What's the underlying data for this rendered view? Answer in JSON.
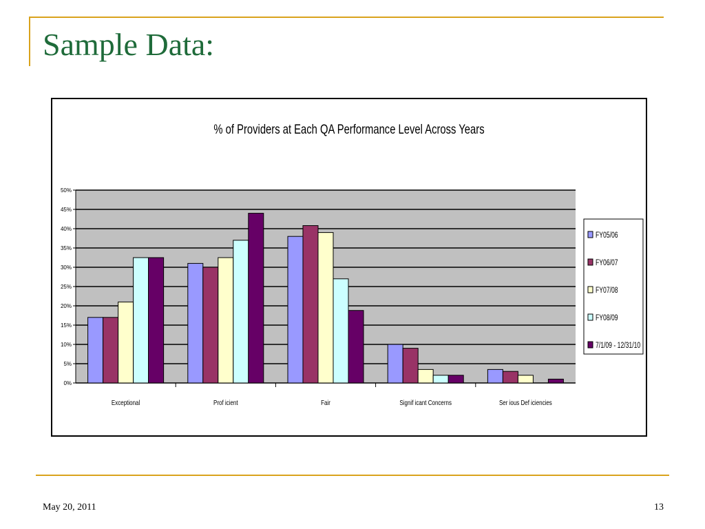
{
  "slide": {
    "title": "Sample Data:",
    "date": "May 20, 2011",
    "page_number": "13",
    "accent_color": "#d9a21b",
    "title_color": "#1f6b3a"
  },
  "chart_data": {
    "type": "bar",
    "title": "% of Providers at Each QA Performance Level Across Years",
    "xlabel": "",
    "ylabel": "",
    "ylim": [
      0,
      50
    ],
    "ytick_labels": [
      "0%",
      "5%",
      "10%",
      "15%",
      "20%",
      "25%",
      "30%",
      "35%",
      "40%",
      "45%",
      "50%"
    ],
    "grid": true,
    "legend_position": "right",
    "plot_background": "#c0c0c0",
    "categories": [
      "Exceptional",
      "Proficient",
      "Fair",
      "Significant Concerns",
      "Serious Deficiencies"
    ],
    "category_labels_display": [
      "Exceptional",
      "Prof icient",
      "Fair",
      "Signif icant Concerns",
      "Ser ious Def iciencies"
    ],
    "series": [
      {
        "name": "FY05/06",
        "color": "#9999ff",
        "values": [
          17,
          31,
          38,
          10,
          3.5
        ]
      },
      {
        "name": "FY06/07",
        "color": "#993366",
        "values": [
          17,
          30,
          40.8,
          9,
          3
        ]
      },
      {
        "name": "FY07/08",
        "color": "#ffffcc",
        "values": [
          21,
          32.5,
          39,
          3.5,
          2
        ]
      },
      {
        "name": "FY08/09",
        "color": "#ccffff",
        "values": [
          32.5,
          37,
          27,
          2,
          0
        ]
      },
      {
        "name": "7/1/09 - 12/31/10",
        "color": "#660066",
        "values": [
          32.5,
          44,
          18.8,
          2,
          1
        ]
      }
    ]
  }
}
